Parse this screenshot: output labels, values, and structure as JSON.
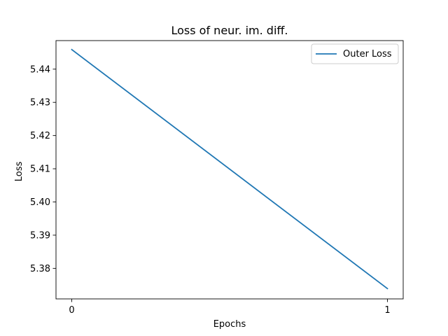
{
  "chart_data": {
    "type": "line",
    "title": "Loss of neur. im. diff.",
    "xlabel": "Epochs",
    "ylabel": "Loss",
    "xlim": [
      -0.05,
      1.05
    ],
    "ylim": [
      5.3708,
      5.4486
    ],
    "x_ticks": [
      0,
      1
    ],
    "x_tick_labels": [
      "0",
      "1"
    ],
    "y_ticks": [
      5.38,
      5.39,
      5.4,
      5.41,
      5.42,
      5.43,
      5.44
    ],
    "y_tick_labels": [
      "5.38",
      "5.39",
      "5.40",
      "5.41",
      "5.42",
      "5.43",
      "5.44"
    ],
    "grid": false,
    "legend": "top-right",
    "series": [
      {
        "name": "Outer Loss",
        "color": "#1f77b4",
        "x": [
          0,
          1
        ],
        "y": [
          5.4459,
          5.3739
        ]
      }
    ]
  }
}
